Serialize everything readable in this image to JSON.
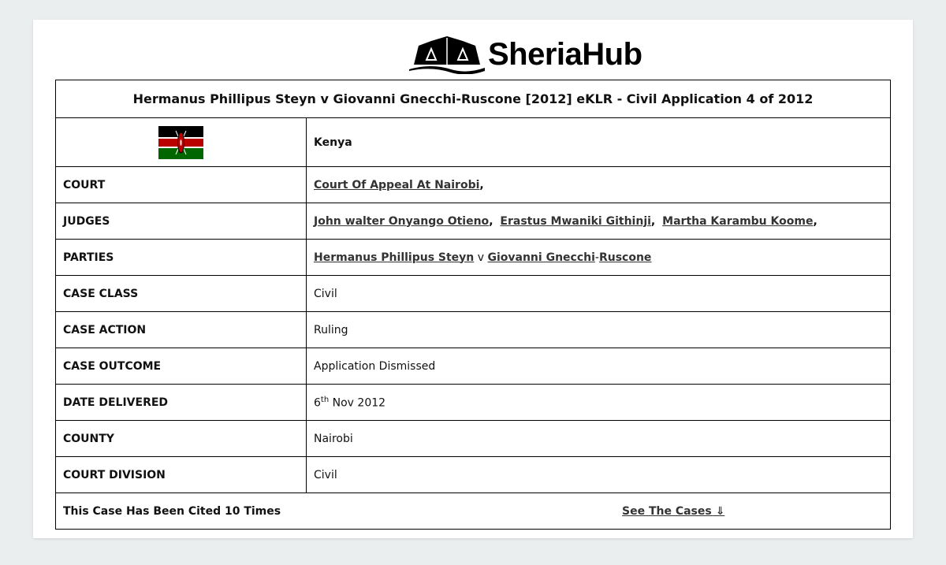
{
  "brand": {
    "name": "SheriaHub"
  },
  "case_title": "Hermanus Phillipus Steyn v Giovanni Gnecchi-Ruscone [2012] eKLR - Civil Application 4 of 2012",
  "country": {
    "name": "Kenya",
    "flag": "kenya-flag"
  },
  "rows": {
    "court": {
      "label": "COURT",
      "link": "Court Of Appeal At Nairobi",
      "suffix": ","
    },
    "judges": {
      "label": "JUDGES",
      "items": [
        "John walter Onyango Otieno",
        "Erastus Mwaniki Githinji",
        "Martha Karambu Koome"
      ],
      "sep": ",",
      "end": ","
    },
    "parties": {
      "label": "PARTIES",
      "p1": "Hermanus Phillipus Steyn",
      "v": "v",
      "p2a": "Giovanni Gnecchi",
      "dash": "-",
      "p2b": "Ruscone"
    },
    "case_class": {
      "label": "CASE CLASS",
      "value": "Civil"
    },
    "case_action": {
      "label": "CASE ACTION",
      "value": "Ruling"
    },
    "case_outcome": {
      "label": "CASE OUTCOME",
      "value": "Application Dismissed"
    },
    "date_delivered": {
      "label": "DATE DELIVERED",
      "day": "6",
      "sup": "th",
      "rest": " Nov 2012"
    },
    "county": {
      "label": "COUNTY",
      "value": "Nairobi"
    },
    "court_division": {
      "label": "COURT DIVISION",
      "value": "Civil"
    }
  },
  "citations": {
    "text": "This Case Has Been Cited 10 Times",
    "link": "See The Cases ⇓"
  }
}
